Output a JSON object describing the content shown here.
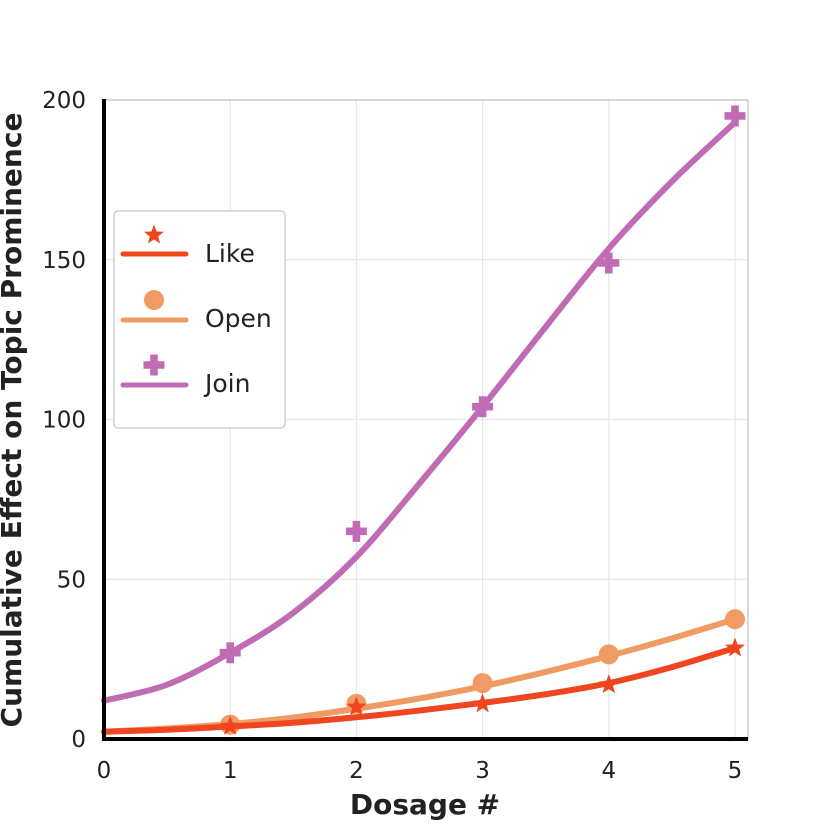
{
  "chart_data": {
    "type": "line",
    "title": "",
    "xlabel": "Dosage #",
    "ylabel": "Cumulative Effect on Topic Prominence",
    "xlim": [
      0,
      5.1
    ],
    "ylim": [
      0,
      200
    ],
    "xticks": [
      0,
      1,
      2,
      3,
      4,
      5
    ],
    "yticks": [
      0,
      50,
      100,
      150,
      200
    ],
    "xtick_labels": [
      "0",
      "1",
      "2",
      "3",
      "4",
      "5"
    ],
    "ytick_labels": [
      "0",
      "50",
      "100",
      "150",
      "200"
    ],
    "grid": true,
    "legend_position": "center-left",
    "series": [
      {
        "name": "Like",
        "color": "#f0451f",
        "marker": "star",
        "markers": {
          "x": [
            1,
            2,
            3,
            4,
            5
          ],
          "y": [
            4,
            10,
            11,
            17,
            28.5
          ]
        },
        "fit": {
          "x": [
            0,
            0.5,
            1,
            1.5,
            2,
            2.5,
            3,
            3.5,
            4,
            4.5,
            5
          ],
          "y": [
            2.3,
            2.9,
            3.9,
            5.1,
            6.8,
            8.9,
            11.3,
            14,
            17.5,
            22.5,
            28.5
          ]
        }
      },
      {
        "name": "Open",
        "color": "#f09a64",
        "marker": "circle",
        "markers": {
          "x": [
            1,
            2,
            3,
            4,
            5
          ],
          "y": [
            4.5,
            11,
            17.5,
            26.5,
            37.5
          ]
        },
        "fit": {
          "x": [
            0,
            0.5,
            1,
            1.5,
            2,
            2.5,
            3,
            3.5,
            4,
            4.5,
            5
          ],
          "y": [
            2.3,
            3.3,
            4.7,
            6.7,
            9.5,
            12.7,
            16.5,
            21,
            26,
            31.5,
            37.5
          ]
        }
      },
      {
        "name": "Join",
        "color": "#c06cb5",
        "marker": "plus",
        "markers": {
          "x": [
            1,
            2,
            3,
            4,
            5
          ],
          "y": [
            27,
            65,
            104,
            149,
            195
          ]
        },
        "fit": {
          "x": [
            0,
            0.5,
            1,
            1.5,
            2,
            2.5,
            3,
            3.5,
            4,
            4.5,
            5
          ],
          "y": [
            12,
            17,
            27,
            39.5,
            57,
            80,
            104,
            129,
            153.5,
            174.5,
            193
          ]
        }
      }
    ]
  }
}
